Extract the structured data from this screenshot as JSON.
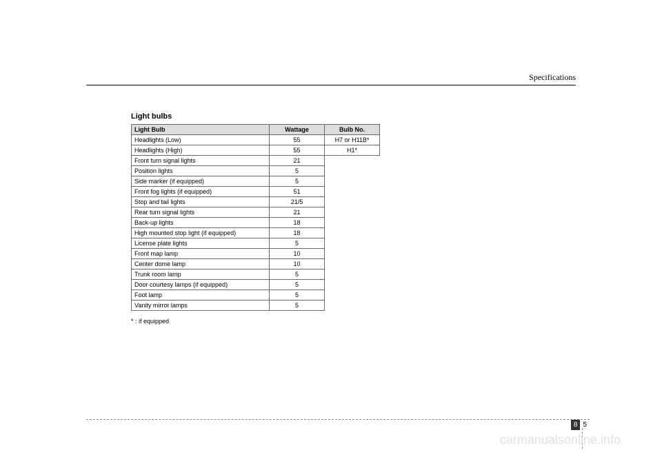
{
  "header": {
    "section": "Specifications"
  },
  "title": "Light bulbs",
  "table": {
    "columns": [
      "Light Bulb",
      "Wattage",
      "Bulb No."
    ],
    "rows": [
      {
        "name": "Headlights (Low)",
        "wattage": "55",
        "bulbno": "H7 or H11B*"
      },
      {
        "name": "Headlights (High)",
        "wattage": "55",
        "bulbno": "H1*"
      },
      {
        "name": "Front turn signal lights",
        "wattage": "21",
        "bulbno": null
      },
      {
        "name": "Position lights",
        "wattage": "5",
        "bulbno": null
      },
      {
        "name": "Side marker (if equipped)",
        "wattage": "5",
        "bulbno": null
      },
      {
        "name": "Front fog lights (if equipped)",
        "wattage": "51",
        "bulbno": null
      },
      {
        "name": "Stop and tail lights",
        "wattage": "21/5",
        "bulbno": null
      },
      {
        "name": "Rear turn signal lights",
        "wattage": "21",
        "bulbno": null
      },
      {
        "name": "Back-up lights",
        "wattage": "18",
        "bulbno": null
      },
      {
        "name": "High mounted stop light (if equipped)",
        "wattage": "18",
        "bulbno": null
      },
      {
        "name": "License plate lights",
        "wattage": "5",
        "bulbno": null
      },
      {
        "name": "Front map lamp",
        "wattage": "10",
        "bulbno": null
      },
      {
        "name": "Center dome lamp",
        "wattage": "10",
        "bulbno": null
      },
      {
        "name": "Trunk room lamp",
        "wattage": "5",
        "bulbno": null
      },
      {
        "name": "Door courtesy lamps (if equipped)",
        "wattage": "5",
        "bulbno": null
      },
      {
        "name": "Foot lamp",
        "wattage": "5",
        "bulbno": null
      },
      {
        "name": "Vanity mirror lamps",
        "wattage": "5",
        "bulbno": null
      }
    ]
  },
  "footnote": "* : if equipped",
  "pagenum": {
    "chapter": "8",
    "page": "5"
  },
  "watermark": "carmanualsonline.info"
}
